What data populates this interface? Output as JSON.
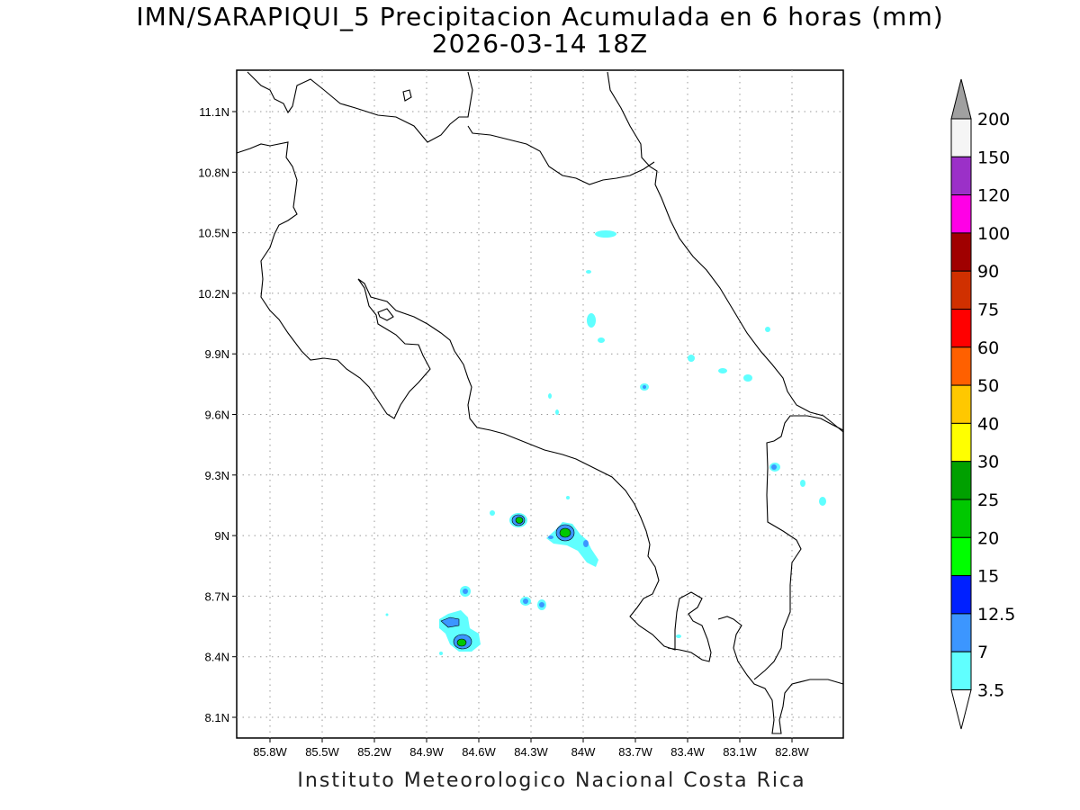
{
  "title": "IMN/SARAPIQUI_5 Precipitacion Acumulada en 6 horas (mm)",
  "subtitle": "2026-03-14 18Z",
  "footer": "Instituto Meteorologico Nacional Costa Rica",
  "map": {
    "lon_range": [
      -85.96,
      -82.94
    ],
    "lat_range": [
      8.0,
      11.3
    ],
    "lon_ticks": [
      "85.8W",
      "85.5W",
      "85.2W",
      "84.9W",
      "84.6W",
      "84.3W",
      "84W",
      "83.7W",
      "83.4W",
      "83.1W",
      "82.8W"
    ],
    "lat_ticks": [
      "11.1N",
      "10.8N",
      "10.5N",
      "10.2N",
      "9.9N",
      "9.6N",
      "9.3N",
      "9N",
      "8.7N",
      "8.4N",
      "8.1N"
    ],
    "grid": "dotted"
  },
  "colorbar": {
    "levels": [
      "200",
      "150",
      "120",
      "100",
      "90",
      "75",
      "60",
      "50",
      "40",
      "30",
      "25",
      "20",
      "15",
      "12.5",
      "7",
      "3.5"
    ],
    "colors": [
      "#a0a0a0",
      "#f5f5f5",
      "#9b30c8",
      "#ff00e6",
      "#a00000",
      "#d03000",
      "#ff0000",
      "#ff6000",
      "#ffc800",
      "#ffff00",
      "#00a000",
      "#00c800",
      "#00ff00",
      "#0020ff",
      "#3c96ff",
      "#60ffff",
      "#ffffff"
    ]
  }
}
